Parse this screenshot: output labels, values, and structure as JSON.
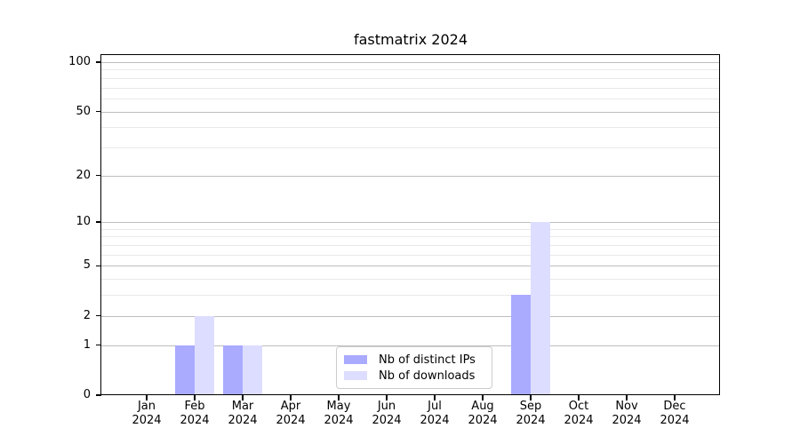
{
  "title": "fastmatrix 2024",
  "colors": {
    "background": "#ffffff",
    "bar_distinct_ips": "#aaaaff",
    "bar_downloads": "#ddddff",
    "grid_major": "#bdbdbd",
    "grid_minor": "#e9e9e9",
    "spine": "#000000",
    "legend_border": "#cccccc"
  },
  "chart_data": {
    "type": "bar",
    "title": "fastmatrix 2024",
    "xlabel": "",
    "ylabel": "",
    "scale": "log1p",
    "grid": true,
    "legend_position": "lower center",
    "categories": [
      "Jan",
      "Feb",
      "Mar",
      "Apr",
      "May",
      "Jun",
      "Jul",
      "Aug",
      "Sep",
      "Oct",
      "Nov",
      "Dec"
    ],
    "year_label": "2024",
    "y_major_ticks": [
      0,
      1,
      2,
      5,
      10,
      20,
      50,
      100
    ],
    "y_minor_gridlines": [
      3,
      4,
      6,
      7,
      8,
      9,
      30,
      40,
      60,
      70,
      80,
      90
    ],
    "ylim": [
      0,
      110
    ],
    "series": [
      {
        "name": "Nb of distinct IPs",
        "color": "#aaaaff",
        "values": [
          0,
          1,
          1,
          0,
          0,
          0,
          0,
          0,
          3,
          0,
          0,
          0
        ]
      },
      {
        "name": "Nb of downloads",
        "color": "#ddddff",
        "values": [
          0,
          2,
          1,
          0,
          0,
          0,
          0,
          0,
          10,
          0,
          0,
          0
        ]
      }
    ]
  }
}
